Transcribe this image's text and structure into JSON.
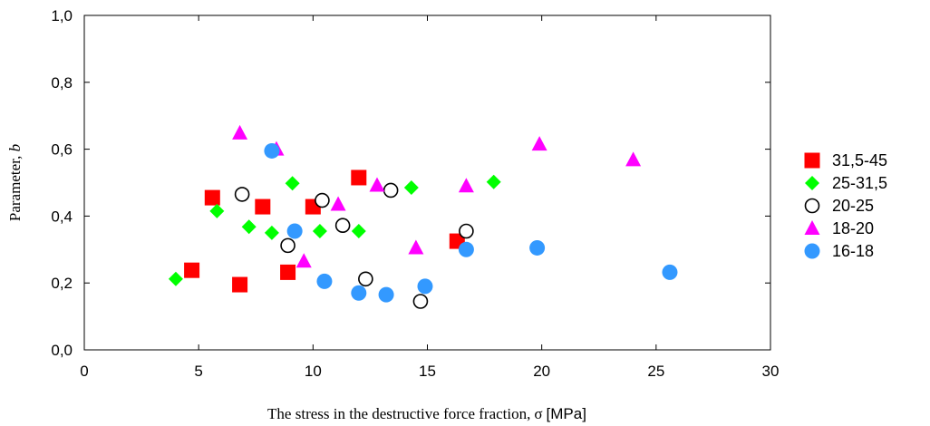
{
  "chart_data": {
    "type": "scatter",
    "title": "",
    "xlabel": {
      "text": "The stress in the destructive force fraction,",
      "symbol": "σ",
      "unit": "[MPa]"
    },
    "ylabel": {
      "text": "Parameter,",
      "symbol": "b"
    },
    "xlim": [
      0,
      30
    ],
    "ylim": [
      0,
      1.0
    ],
    "x_ticks": [
      0,
      5,
      10,
      15,
      20,
      25,
      30
    ],
    "x_tick_labels": [
      "0",
      "5",
      "10",
      "15",
      "20",
      "25",
      "30"
    ],
    "y_ticks": [
      0,
      0.2,
      0.4,
      0.6,
      0.8,
      1.0
    ],
    "y_tick_labels": [
      "0,0",
      "0,2",
      "0,4",
      "0,6",
      "0,8",
      "1,0"
    ],
    "grid": false,
    "legend_position": "right",
    "series": [
      {
        "name": "31,5-45",
        "marker": "square",
        "color": "#ff0000",
        "points": [
          [
            4.7,
            0.238
          ],
          [
            5.6,
            0.455
          ],
          [
            6.8,
            0.195
          ],
          [
            7.8,
            0.428
          ],
          [
            8.9,
            0.232
          ],
          [
            10.0,
            0.428
          ],
          [
            12.0,
            0.515
          ],
          [
            16.3,
            0.325
          ]
        ]
      },
      {
        "name": "25-31,5",
        "marker": "diamond",
        "color": "#00ff00",
        "points": [
          [
            4.0,
            0.212
          ],
          [
            5.8,
            0.415
          ],
          [
            7.2,
            0.368
          ],
          [
            8.2,
            0.35
          ],
          [
            9.1,
            0.498
          ],
          [
            10.3,
            0.355
          ],
          [
            12.0,
            0.355
          ],
          [
            14.3,
            0.485
          ],
          [
            17.9,
            0.502
          ]
        ]
      },
      {
        "name": "20-25",
        "marker": "circle-open",
        "color": "#000000",
        "points": [
          [
            6.9,
            0.465
          ],
          [
            8.9,
            0.312
          ],
          [
            10.4,
            0.447
          ],
          [
            11.3,
            0.372
          ],
          [
            12.3,
            0.212
          ],
          [
            13.4,
            0.477
          ],
          [
            14.7,
            0.145
          ],
          [
            16.7,
            0.355
          ]
        ]
      },
      {
        "name": "18-20",
        "marker": "triangle",
        "color": "#ff00ff",
        "points": [
          [
            6.8,
            0.648
          ],
          [
            8.4,
            0.6
          ],
          [
            9.6,
            0.265
          ],
          [
            11.1,
            0.435
          ],
          [
            12.8,
            0.492
          ],
          [
            14.5,
            0.305
          ],
          [
            16.7,
            0.49
          ],
          [
            19.9,
            0.615
          ],
          [
            24.0,
            0.568
          ]
        ]
      },
      {
        "name": "16-18",
        "marker": "circle",
        "color": "#3399ff",
        "points": [
          [
            8.2,
            0.595
          ],
          [
            9.2,
            0.355
          ],
          [
            10.5,
            0.205
          ],
          [
            12.0,
            0.17
          ],
          [
            13.2,
            0.165
          ],
          [
            14.9,
            0.19
          ],
          [
            16.7,
            0.3
          ],
          [
            19.8,
            0.305
          ],
          [
            25.6,
            0.232
          ]
        ]
      }
    ]
  }
}
